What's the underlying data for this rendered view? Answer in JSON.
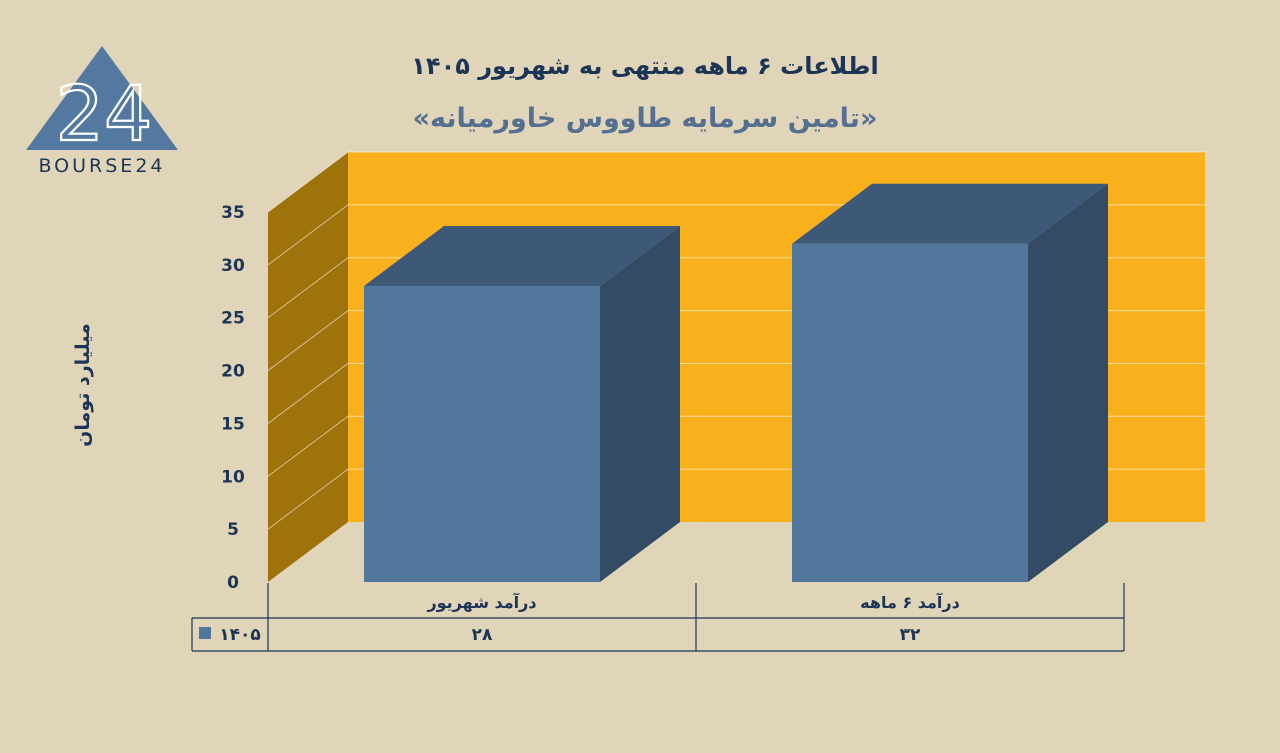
{
  "logo": {
    "text": "BOURSE24",
    "color": "#5479a1"
  },
  "chart_data": {
    "type": "bar",
    "title": "اطلاعات ۶ ماهه منتهی به شهریور ۱۴۰۵",
    "subtitle": "«تامین سرمایه طاووس خاورمیانه»",
    "ylabel": "میلیارد تومان",
    "xlabel": "",
    "ylim": [
      0,
      35
    ],
    "yticks": [
      0,
      5,
      10,
      15,
      20,
      25,
      30,
      35
    ],
    "ytick_labels": [
      "0",
      "5",
      "10",
      "15",
      "20",
      "25",
      "30",
      "35"
    ],
    "categories": [
      "درآمد  شهریور",
      "درآمد ۶  ماهه"
    ],
    "series": [
      {
        "name": "۱۴۰۵",
        "values": [
          28,
          32
        ],
        "value_labels": [
          "۲۸",
          "۳۲"
        ]
      }
    ],
    "grid": true,
    "legend": "data-table",
    "colors": {
      "bar_front": "#52779c",
      "bar_top": "#3e5877",
      "bar_side": "#344b66",
      "back_wall": "#f8b11c",
      "side_wall": "#9e730c",
      "text": "#1c3556"
    }
  }
}
